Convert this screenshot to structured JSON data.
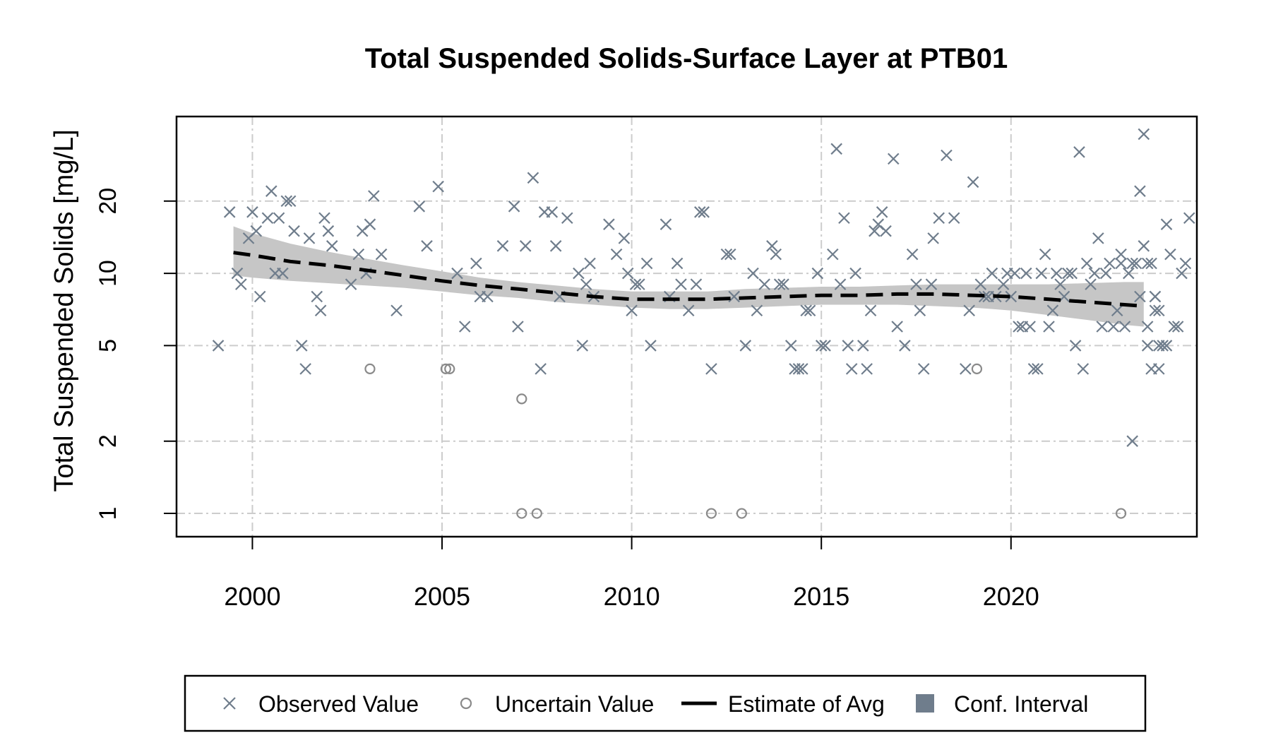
{
  "chart_data": {
    "type": "scatter",
    "title": "Total Suspended Solids-Surface Layer at PTB01",
    "xlabel": "",
    "ylabel": "Total Suspended Solids [mg/L]",
    "xlim": [
      1998.0,
      2024.9
    ],
    "ylim": [
      0.8,
      45
    ],
    "y_scale": "log",
    "grid": true,
    "x_ticks": [
      2000,
      2005,
      2010,
      2015,
      2020
    ],
    "x_tick_labels": [
      "2000",
      "2005",
      "2010",
      "2015",
      "2020"
    ],
    "y_ticks": [
      1,
      2,
      5,
      10,
      20
    ],
    "y_tick_labels": [
      "1",
      "2",
      "5",
      "10",
      "20"
    ],
    "legend": {
      "position": "bottom",
      "entries": [
        {
          "label": "Observed Value",
          "symbol": "x"
        },
        {
          "label": "Uncertain Value",
          "symbol": "circle"
        },
        {
          "label": "Estimate of Avg",
          "symbol": "dashed-line"
        },
        {
          "label": "Conf. Interval",
          "symbol": "square"
        }
      ]
    },
    "colors": {
      "observed": "#6f7d8c",
      "uncertain": "#8a8a8a",
      "estimate": "#000000",
      "conf_band": "#c6c6c6",
      "legend_ci": "#6f7d8c",
      "grid": "#cccccc"
    },
    "observed": [
      [
        1999.1,
        5
      ],
      [
        1999.4,
        18
      ],
      [
        1999.6,
        10
      ],
      [
        1999.7,
        9
      ],
      [
        1999.9,
        14
      ],
      [
        2000.0,
        18
      ],
      [
        2000.1,
        15
      ],
      [
        2000.2,
        8
      ],
      [
        2000.4,
        17
      ],
      [
        2000.5,
        22
      ],
      [
        2000.6,
        10
      ],
      [
        2000.7,
        17
      ],
      [
        2000.8,
        10
      ],
      [
        2000.9,
        20
      ],
      [
        2001.0,
        20
      ],
      [
        2001.1,
        15
      ],
      [
        2001.3,
        5
      ],
      [
        2001.4,
        4
      ],
      [
        2001.5,
        14
      ],
      [
        2001.7,
        8
      ],
      [
        2001.8,
        7
      ],
      [
        2001.9,
        17
      ],
      [
        2002.0,
        15
      ],
      [
        2002.1,
        13
      ],
      [
        2002.6,
        9
      ],
      [
        2002.8,
        12
      ],
      [
        2002.9,
        15
      ],
      [
        2003.0,
        10
      ],
      [
        2003.1,
        16
      ],
      [
        2003.2,
        21
      ],
      [
        2003.4,
        12
      ],
      [
        2003.8,
        7
      ],
      [
        2004.4,
        19
      ],
      [
        2004.6,
        13
      ],
      [
        2004.9,
        23
      ],
      [
        2005.4,
        10
      ],
      [
        2005.6,
        6
      ],
      [
        2005.9,
        11
      ],
      [
        2006.0,
        8
      ],
      [
        2006.2,
        8
      ],
      [
        2006.6,
        13
      ],
      [
        2006.9,
        19
      ],
      [
        2007.0,
        6
      ],
      [
        2007.2,
        13
      ],
      [
        2007.4,
        25
      ],
      [
        2007.6,
        4
      ],
      [
        2007.7,
        18
      ],
      [
        2007.9,
        18
      ],
      [
        2008.0,
        13
      ],
      [
        2008.1,
        8
      ],
      [
        2008.3,
        17
      ],
      [
        2008.6,
        10
      ],
      [
        2008.7,
        5
      ],
      [
        2008.8,
        9
      ],
      [
        2008.9,
        11
      ],
      [
        2009.0,
        8
      ],
      [
        2009.4,
        16
      ],
      [
        2009.6,
        12
      ],
      [
        2009.8,
        14
      ],
      [
        2009.9,
        10
      ],
      [
        2010.0,
        7
      ],
      [
        2010.1,
        9
      ],
      [
        2010.2,
        9
      ],
      [
        2010.4,
        11
      ],
      [
        2010.5,
        5
      ],
      [
        2010.9,
        16
      ],
      [
        2011.0,
        8
      ],
      [
        2011.2,
        11
      ],
      [
        2011.3,
        9
      ],
      [
        2011.5,
        7
      ],
      [
        2011.7,
        9
      ],
      [
        2011.8,
        18
      ],
      [
        2011.9,
        18
      ],
      [
        2012.1,
        4
      ],
      [
        2012.5,
        12
      ],
      [
        2012.6,
        12
      ],
      [
        2012.7,
        8
      ],
      [
        2013.0,
        5
      ],
      [
        2013.2,
        10
      ],
      [
        2013.3,
        7
      ],
      [
        2013.5,
        9
      ],
      [
        2013.7,
        13
      ],
      [
        2013.8,
        12
      ],
      [
        2013.9,
        9
      ],
      [
        2014.0,
        9
      ],
      [
        2014.2,
        5
      ],
      [
        2014.3,
        4
      ],
      [
        2014.4,
        4
      ],
      [
        2014.5,
        4
      ],
      [
        2014.6,
        7
      ],
      [
        2014.7,
        7
      ],
      [
        2014.9,
        10
      ],
      [
        2015.0,
        5
      ],
      [
        2015.1,
        5
      ],
      [
        2015.3,
        12
      ],
      [
        2015.4,
        33
      ],
      [
        2015.5,
        9
      ],
      [
        2015.6,
        17
      ],
      [
        2015.7,
        5
      ],
      [
        2015.8,
        4
      ],
      [
        2015.9,
        10
      ],
      [
        2016.1,
        5
      ],
      [
        2016.2,
        4
      ],
      [
        2016.3,
        7
      ],
      [
        2016.4,
        15
      ],
      [
        2016.5,
        16
      ],
      [
        2016.6,
        18
      ],
      [
        2016.7,
        15
      ],
      [
        2016.9,
        30
      ],
      [
        2017.0,
        6
      ],
      [
        2017.2,
        5
      ],
      [
        2017.4,
        12
      ],
      [
        2017.5,
        9
      ],
      [
        2017.6,
        7
      ],
      [
        2017.7,
        4
      ],
      [
        2017.9,
        9
      ],
      [
        2017.95,
        14
      ],
      [
        2018.1,
        17
      ],
      [
        2018.3,
        31
      ],
      [
        2018.5,
        17
      ],
      [
        2018.8,
        4
      ],
      [
        2018.9,
        7
      ],
      [
        2019.0,
        24
      ],
      [
        2019.2,
        9
      ],
      [
        2019.3,
        8
      ],
      [
        2019.4,
        8
      ],
      [
        2019.5,
        10
      ],
      [
        2019.6,
        8
      ],
      [
        2019.8,
        9
      ],
      [
        2019.9,
        10
      ],
      [
        2020.0,
        8
      ],
      [
        2020.1,
        10
      ],
      [
        2020.2,
        6
      ],
      [
        2020.3,
        6
      ],
      [
        2020.4,
        10
      ],
      [
        2020.5,
        6
      ],
      [
        2020.6,
        4
      ],
      [
        2020.7,
        4
      ],
      [
        2020.8,
        10
      ],
      [
        2020.9,
        12
      ],
      [
        2021.0,
        6
      ],
      [
        2021.1,
        7
      ],
      [
        2021.2,
        10
      ],
      [
        2021.3,
        9
      ],
      [
        2021.4,
        8
      ],
      [
        2021.5,
        10
      ],
      [
        2021.6,
        10
      ],
      [
        2021.7,
        5
      ],
      [
        2021.8,
        32
      ],
      [
        2021.9,
        4
      ],
      [
        2022.0,
        11
      ],
      [
        2022.1,
        9
      ],
      [
        2022.2,
        10
      ],
      [
        2022.3,
        14
      ],
      [
        2022.4,
        6
      ],
      [
        2022.5,
        10
      ],
      [
        2022.6,
        11
      ],
      [
        2022.7,
        6
      ],
      [
        2022.8,
        7
      ],
      [
        2022.9,
        12
      ],
      [
        2023.0,
        6
      ],
      [
        2023.1,
        10
      ],
      [
        2023.2,
        11
      ],
      [
        2023.3,
        11
      ],
      [
        2023.4,
        8
      ],
      [
        2023.5,
        13
      ],
      [
        2023.6,
        11
      ],
      [
        2023.7,
        11
      ],
      [
        2023.8,
        7
      ],
      [
        2023.9,
        5
      ],
      [
        2024.0,
        5
      ],
      [
        2024.1,
        5
      ],
      [
        2024.2,
        12
      ],
      [
        2024.3,
        6
      ],
      [
        2024.4,
        6
      ],
      [
        2024.5,
        10
      ],
      [
        2024.6,
        11
      ],
      [
        2024.7,
        17
      ],
      [
        2023.2,
        2
      ],
      [
        2023.4,
        22
      ],
      [
        2023.6,
        6
      ],
      [
        2023.7,
        4
      ],
      [
        2023.8,
        8
      ],
      [
        2022.9,
        11
      ],
      [
        2023.9,
        4
      ],
      [
        2024.1,
        16
      ],
      [
        2023.5,
        38
      ],
      [
        2023.6,
        5
      ],
      [
        2023.8,
        8
      ],
      [
        2023.9,
        7
      ]
    ],
    "uncertain": [
      [
        2003.1,
        4
      ],
      [
        2005.1,
        4
      ],
      [
        2005.2,
        4
      ],
      [
        2007.1,
        3
      ],
      [
        2007.1,
        1
      ],
      [
        2007.5,
        1
      ],
      [
        2012.1,
        1
      ],
      [
        2012.9,
        1
      ],
      [
        2019.1,
        4
      ],
      [
        2022.9,
        1
      ]
    ],
    "estimate": [
      [
        1999.5,
        12.2
      ],
      [
        2000.0,
        11.9
      ],
      [
        2001.0,
        11.2
      ],
      [
        2002.0,
        10.8
      ],
      [
        2003.0,
        10.3
      ],
      [
        2004.0,
        9.8
      ],
      [
        2005.0,
        9.3
      ],
      [
        2006.0,
        8.9
      ],
      [
        2007.0,
        8.6
      ],
      [
        2008.0,
        8.3
      ],
      [
        2009.0,
        8.0
      ],
      [
        2010.0,
        7.8
      ],
      [
        2011.0,
        7.8
      ],
      [
        2012.0,
        7.8
      ],
      [
        2013.0,
        7.9
      ],
      [
        2014.0,
        8.0
      ],
      [
        2015.0,
        8.1
      ],
      [
        2016.0,
        8.1
      ],
      [
        2017.0,
        8.2
      ],
      [
        2018.0,
        8.2
      ],
      [
        2019.0,
        8.1
      ],
      [
        2020.0,
        8.0
      ],
      [
        2021.0,
        7.8
      ],
      [
        2022.0,
        7.6
      ],
      [
        2023.0,
        7.4
      ],
      [
        2023.5,
        7.3
      ]
    ],
    "ci_upper": [
      [
        1999.5,
        15.7
      ],
      [
        2000.0,
        14.7
      ],
      [
        2001.0,
        13.3
      ],
      [
        2002.0,
        12.3
      ],
      [
        2003.0,
        11.5
      ],
      [
        2004.0,
        10.8
      ],
      [
        2005.0,
        10.2
      ],
      [
        2006.0,
        9.6
      ],
      [
        2007.0,
        9.2
      ],
      [
        2008.0,
        8.9
      ],
      [
        2009.0,
        8.6
      ],
      [
        2010.0,
        8.4
      ],
      [
        2011.0,
        8.4
      ],
      [
        2012.0,
        8.4
      ],
      [
        2013.0,
        8.6
      ],
      [
        2014.0,
        8.7
      ],
      [
        2015.0,
        8.8
      ],
      [
        2016.0,
        8.8
      ],
      [
        2017.0,
        8.9
      ],
      [
        2018.0,
        9.0
      ],
      [
        2019.0,
        9.0
      ],
      [
        2020.0,
        9.0
      ],
      [
        2021.0,
        9.0
      ],
      [
        2022.0,
        9.1
      ],
      [
        2023.0,
        9.2
      ],
      [
        2023.5,
        9.2
      ]
    ],
    "ci_lower": [
      [
        1999.5,
        9.8
      ],
      [
        2000.0,
        9.6
      ],
      [
        2001.0,
        9.3
      ],
      [
        2002.0,
        9.1
      ],
      [
        2003.0,
        8.9
      ],
      [
        2004.0,
        8.7
      ],
      [
        2005.0,
        8.4
      ],
      [
        2006.0,
        8.1
      ],
      [
        2007.0,
        7.9
      ],
      [
        2008.0,
        7.6
      ],
      [
        2009.0,
        7.4
      ],
      [
        2010.0,
        7.2
      ],
      [
        2011.0,
        7.1
      ],
      [
        2012.0,
        7.1
      ],
      [
        2013.0,
        7.2
      ],
      [
        2014.0,
        7.3
      ],
      [
        2015.0,
        7.4
      ],
      [
        2016.0,
        7.4
      ],
      [
        2017.0,
        7.4
      ],
      [
        2018.0,
        7.3
      ],
      [
        2019.0,
        7.2
      ],
      [
        2020.0,
        7.0
      ],
      [
        2021.0,
        6.7
      ],
      [
        2022.0,
        6.4
      ],
      [
        2023.0,
        6.1
      ],
      [
        2023.5,
        6.0
      ]
    ]
  }
}
